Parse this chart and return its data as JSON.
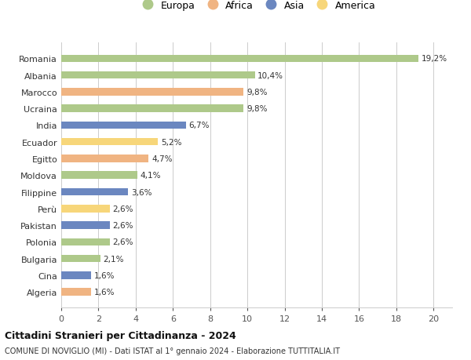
{
  "countries": [
    "Romania",
    "Albania",
    "Marocco",
    "Ucraina",
    "India",
    "Ecuador",
    "Egitto",
    "Moldova",
    "Filippine",
    "Perù",
    "Pakistan",
    "Polonia",
    "Bulgaria",
    "Cina",
    "Algeria"
  ],
  "values": [
    19.2,
    10.4,
    9.8,
    9.8,
    6.7,
    5.2,
    4.7,
    4.1,
    3.6,
    2.6,
    2.6,
    2.6,
    2.1,
    1.6,
    1.6
  ],
  "labels": [
    "19,2%",
    "10,4%",
    "9,8%",
    "9,8%",
    "6,7%",
    "5,2%",
    "4,7%",
    "4,1%",
    "3,6%",
    "2,6%",
    "2,6%",
    "2,6%",
    "2,1%",
    "1,6%",
    "1,6%"
  ],
  "continents": [
    "Europa",
    "Europa",
    "Africa",
    "Europa",
    "Asia",
    "America",
    "Africa",
    "Europa",
    "Asia",
    "America",
    "Asia",
    "Europa",
    "Europa",
    "Asia",
    "Africa"
  ],
  "continent_colors": {
    "Europa": "#aec98a",
    "Africa": "#f0b482",
    "Asia": "#6b87c0",
    "America": "#f7d67a"
  },
  "legend_order": [
    "Europa",
    "Africa",
    "Asia",
    "America"
  ],
  "title": "Cittadini Stranieri per Cittadinanza - 2024",
  "subtitle": "COMUNE DI NOVIGLIO (MI) - Dati ISTAT al 1° gennaio 2024 - Elaborazione TUTTITALIA.IT",
  "xlim": [
    0,
    21
  ],
  "xticks": [
    0,
    2,
    4,
    6,
    8,
    10,
    12,
    14,
    16,
    18,
    20
  ],
  "grid_color": "#cccccc",
  "background_color": "#ffffff"
}
